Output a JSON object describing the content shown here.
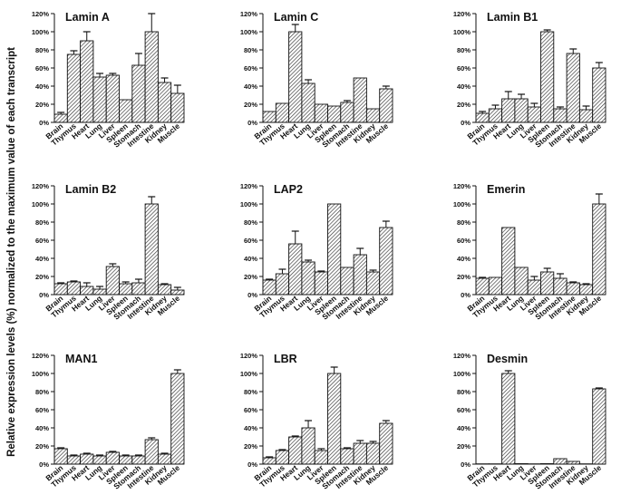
{
  "figure": {
    "ylabel": "Relative expression levels (%) normalized to the maximum value of each transcript",
    "colors": {
      "bar_fill": "#ffffff",
      "hatch": "#333333",
      "axis": "#111111",
      "text": "#111111"
    },
    "yticks": [
      "0%",
      "20%",
      "40%",
      "60%",
      "80%",
      "100%",
      "120%"
    ]
  },
  "chart_data": [
    {
      "type": "bar",
      "title": "Lamin A",
      "ylim": [
        0,
        120
      ],
      "categories": [
        "Brain",
        "Thymus",
        "Heart",
        "Lung",
        "Liver",
        "Spleen",
        "Stomach",
        "Intestine",
        "Kidney",
        "Muscle"
      ],
      "values": [
        9,
        75,
        90,
        50,
        52,
        25,
        63,
        100,
        44,
        32
      ],
      "errors": [
        2,
        4,
        10,
        4,
        2,
        0,
        13,
        20,
        5,
        9
      ]
    },
    {
      "type": "bar",
      "title": "Lamin C",
      "ylim": [
        0,
        120
      ],
      "categories": [
        "Brain",
        "Thymus",
        "Heart",
        "Lung",
        "Liver",
        "Spleen",
        "Stomach",
        "Intestine",
        "Kidney",
        "Muscle"
      ],
      "values": [
        12,
        21,
        100,
        43,
        20,
        18,
        22,
        49,
        15,
        37
      ],
      "errors": [
        0,
        0,
        8,
        4,
        0,
        0,
        2,
        0,
        0,
        3
      ]
    },
    {
      "type": "bar",
      "title": "Lamin B1",
      "ylim": [
        0,
        120
      ],
      "categories": [
        "Brain",
        "Thymus",
        "Heart",
        "Lung",
        "Liver",
        "Spleen",
        "Stomach",
        "Intestine",
        "Kidney",
        "Muscle"
      ],
      "values": [
        10,
        15,
        26,
        26,
        17,
        100,
        15,
        76,
        14,
        60
      ],
      "errors": [
        2,
        4,
        8,
        5,
        4,
        2,
        2,
        5,
        4,
        6
      ]
    },
    {
      "type": "bar",
      "title": "Lamin B2",
      "ylim": [
        0,
        120
      ],
      "categories": [
        "Brain",
        "Thymus",
        "Heart",
        "Lung",
        "Liver",
        "Spleen",
        "Stomach",
        "Intestine",
        "Kidney",
        "Muscle"
      ],
      "values": [
        12,
        14,
        9,
        6,
        31,
        12,
        13,
        100,
        11,
        5
      ],
      "errors": [
        1,
        1,
        4,
        3,
        3,
        2,
        4,
        8,
        1,
        3
      ]
    },
    {
      "type": "bar",
      "title": "LAP2",
      "ylim": [
        0,
        120
      ],
      "categories": [
        "Brain",
        "Thymus",
        "Heart",
        "Lung",
        "Liver",
        "Spleen",
        "Stomach",
        "Intestine",
        "Kidney",
        "Muscle"
      ],
      "values": [
        16,
        23,
        56,
        36,
        25,
        100,
        30,
        44,
        25,
        74
      ],
      "errors": [
        1,
        5,
        14,
        2,
        1,
        0,
        0,
        7,
        2,
        7
      ]
    },
    {
      "type": "bar",
      "title": "Emerin",
      "ylim": [
        0,
        120
      ],
      "categories": [
        "Brain",
        "Thymus",
        "Heart",
        "Lung",
        "Liver",
        "Spleen",
        "Stomach",
        "Intestine",
        "Kidney",
        "Muscle"
      ],
      "values": [
        18,
        19,
        74,
        30,
        16,
        25,
        18,
        13,
        11,
        100
      ],
      "errors": [
        1,
        0,
        0,
        0,
        4,
        4,
        5,
        1,
        1,
        11
      ]
    },
    {
      "type": "bar",
      "title": "MAN1",
      "ylim": [
        0,
        120
      ],
      "categories": [
        "Brain",
        "Thymus",
        "Heart",
        "Lung",
        "Liver",
        "Spleen",
        "Stomach",
        "Intestine",
        "Kidney",
        "Muscle"
      ],
      "values": [
        17,
        9,
        11,
        9,
        13,
        9,
        9,
        27,
        11,
        100
      ],
      "errors": [
        1,
        1,
        1,
        1,
        1,
        1,
        1,
        2,
        1,
        4
      ]
    },
    {
      "type": "bar",
      "title": "LBR",
      "ylim": [
        0,
        120
      ],
      "categories": [
        "Brain",
        "Thymus",
        "Heart",
        "Lung",
        "Liver",
        "Spleen",
        "Stomach",
        "Intestine",
        "Kidney",
        "Muscle"
      ],
      "values": [
        7,
        15,
        30,
        40,
        15,
        100,
        17,
        23,
        23,
        45
      ],
      "errors": [
        1,
        1,
        1,
        8,
        2,
        7,
        1,
        3,
        2,
        3
      ]
    },
    {
      "type": "bar",
      "title": "Desmin",
      "ylim": [
        0,
        120
      ],
      "categories": [
        "Brain",
        "Thymus",
        "Heart",
        "Lung",
        "Liver",
        "Spleen",
        "Stomach",
        "Intestine",
        "Kidney",
        "Muscle"
      ],
      "values": [
        0.3,
        0.3,
        100,
        0.5,
        0.3,
        0.5,
        6,
        3,
        0.3,
        83
      ],
      "errors": [
        0,
        0,
        3,
        0,
        0,
        0,
        0,
        0,
        0,
        1
      ]
    }
  ]
}
